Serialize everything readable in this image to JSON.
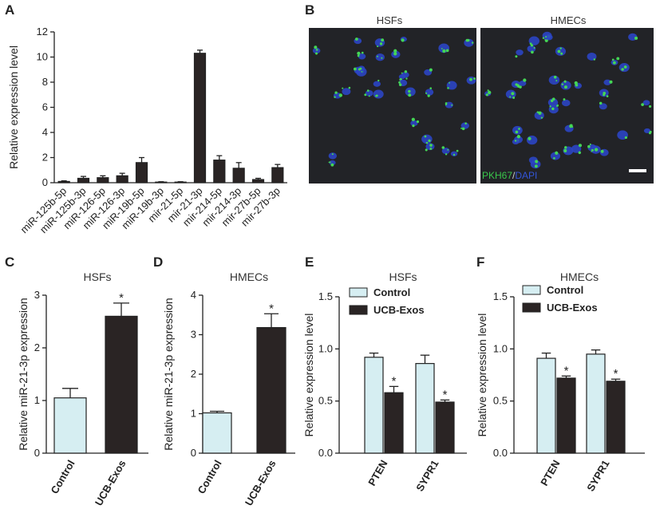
{
  "panels": {
    "A": "A",
    "B": "B",
    "C": "C",
    "D": "D",
    "E": "E",
    "F": "F"
  },
  "microscopy": {
    "left_title": "HSFs",
    "right_title": "HMECs",
    "stain_green": "PKH67",
    "stain_sep": "/",
    "stain_blue": "DAPI"
  },
  "chart_data": [
    {
      "id": "A",
      "type": "bar",
      "title": "",
      "ylabel": "Relative expression level",
      "ylim": [
        0,
        12
      ],
      "yticks": [
        0,
        2,
        4,
        6,
        8,
        10,
        12
      ],
      "categories": [
        "miR-125b-5p",
        "miR-125b-3p",
        "miR-126-5p",
        "miR-126-3p",
        "miR-19b-5p",
        "miR-19b-3p",
        "mir-21-5p",
        "mir-21-3p",
        "mir-214-5p",
        "mir-214-3p",
        "mir-27b-5p",
        "mir-27b-3p"
      ],
      "values": [
        0.1,
        0.35,
        0.4,
        0.55,
        1.6,
        0.05,
        0.05,
        10.3,
        1.8,
        1.15,
        0.25,
        1.2
      ],
      "errors": [
        0.05,
        0.15,
        0.15,
        0.2,
        0.4,
        0.03,
        0.03,
        0.25,
        0.35,
        0.45,
        0.1,
        0.25
      ],
      "color": "#2a2424"
    },
    {
      "id": "C",
      "type": "bar",
      "title": "HSFs",
      "ylabel": "Relative miR-21-3p expression",
      "ylim": [
        0,
        3
      ],
      "yticks": [
        0,
        1,
        2,
        3
      ],
      "categories": [
        "Control",
        "UCB-Exos"
      ],
      "values": [
        1.05,
        2.6
      ],
      "errors": [
        0.18,
        0.25
      ],
      "colors": [
        "#d6eef2",
        "#2a2424"
      ],
      "significance": [
        "",
        "*"
      ]
    },
    {
      "id": "D",
      "type": "bar",
      "title": "HMECs",
      "ylabel": "Relative miR-21-3p expression",
      "ylim": [
        0,
        4
      ],
      "yticks": [
        0,
        1,
        2,
        3,
        4
      ],
      "categories": [
        "Control",
        "UCB-Exos"
      ],
      "values": [
        1.02,
        3.18
      ],
      "errors": [
        0.04,
        0.35
      ],
      "colors": [
        "#d6eef2",
        "#2a2424"
      ],
      "significance": [
        "",
        "*"
      ]
    },
    {
      "id": "E",
      "type": "bar",
      "title": "HSFs",
      "ylabel": "Relative expression level",
      "ylim": [
        0,
        1.5
      ],
      "yticks": [
        "0.0",
        "0.5",
        "1.0",
        "1.5"
      ],
      "categories": [
        "PTEN",
        "SYPR1"
      ],
      "series": [
        {
          "name": "Control",
          "values": [
            0.92,
            0.86
          ],
          "errors": [
            0.04,
            0.08
          ],
          "color": "#d6eef2",
          "significance": [
            "",
            ""
          ]
        },
        {
          "name": "UCB-Exos",
          "values": [
            0.58,
            0.49
          ],
          "errors": [
            0.06,
            0.02
          ],
          "color": "#2a2424",
          "significance": [
            "*",
            "*"
          ]
        }
      ],
      "legend": "top-left"
    },
    {
      "id": "F",
      "type": "bar",
      "title": "HMECs",
      "ylabel": "Relative expression level",
      "ylim": [
        0,
        1.5
      ],
      "yticks": [
        "0.0",
        "0.5",
        "1.0",
        "1.5"
      ],
      "categories": [
        "PTEN",
        "SYPR1"
      ],
      "series": [
        {
          "name": "Control",
          "values": [
            0.91,
            0.95
          ],
          "errors": [
            0.05,
            0.04
          ],
          "color": "#d6eef2",
          "significance": [
            "",
            ""
          ]
        },
        {
          "name": "UCB-Exos",
          "values": [
            0.72,
            0.69
          ],
          "errors": [
            0.02,
            0.02
          ],
          "color": "#2a2424",
          "significance": [
            "*",
            "*"
          ]
        }
      ],
      "legend": "top-left"
    }
  ]
}
